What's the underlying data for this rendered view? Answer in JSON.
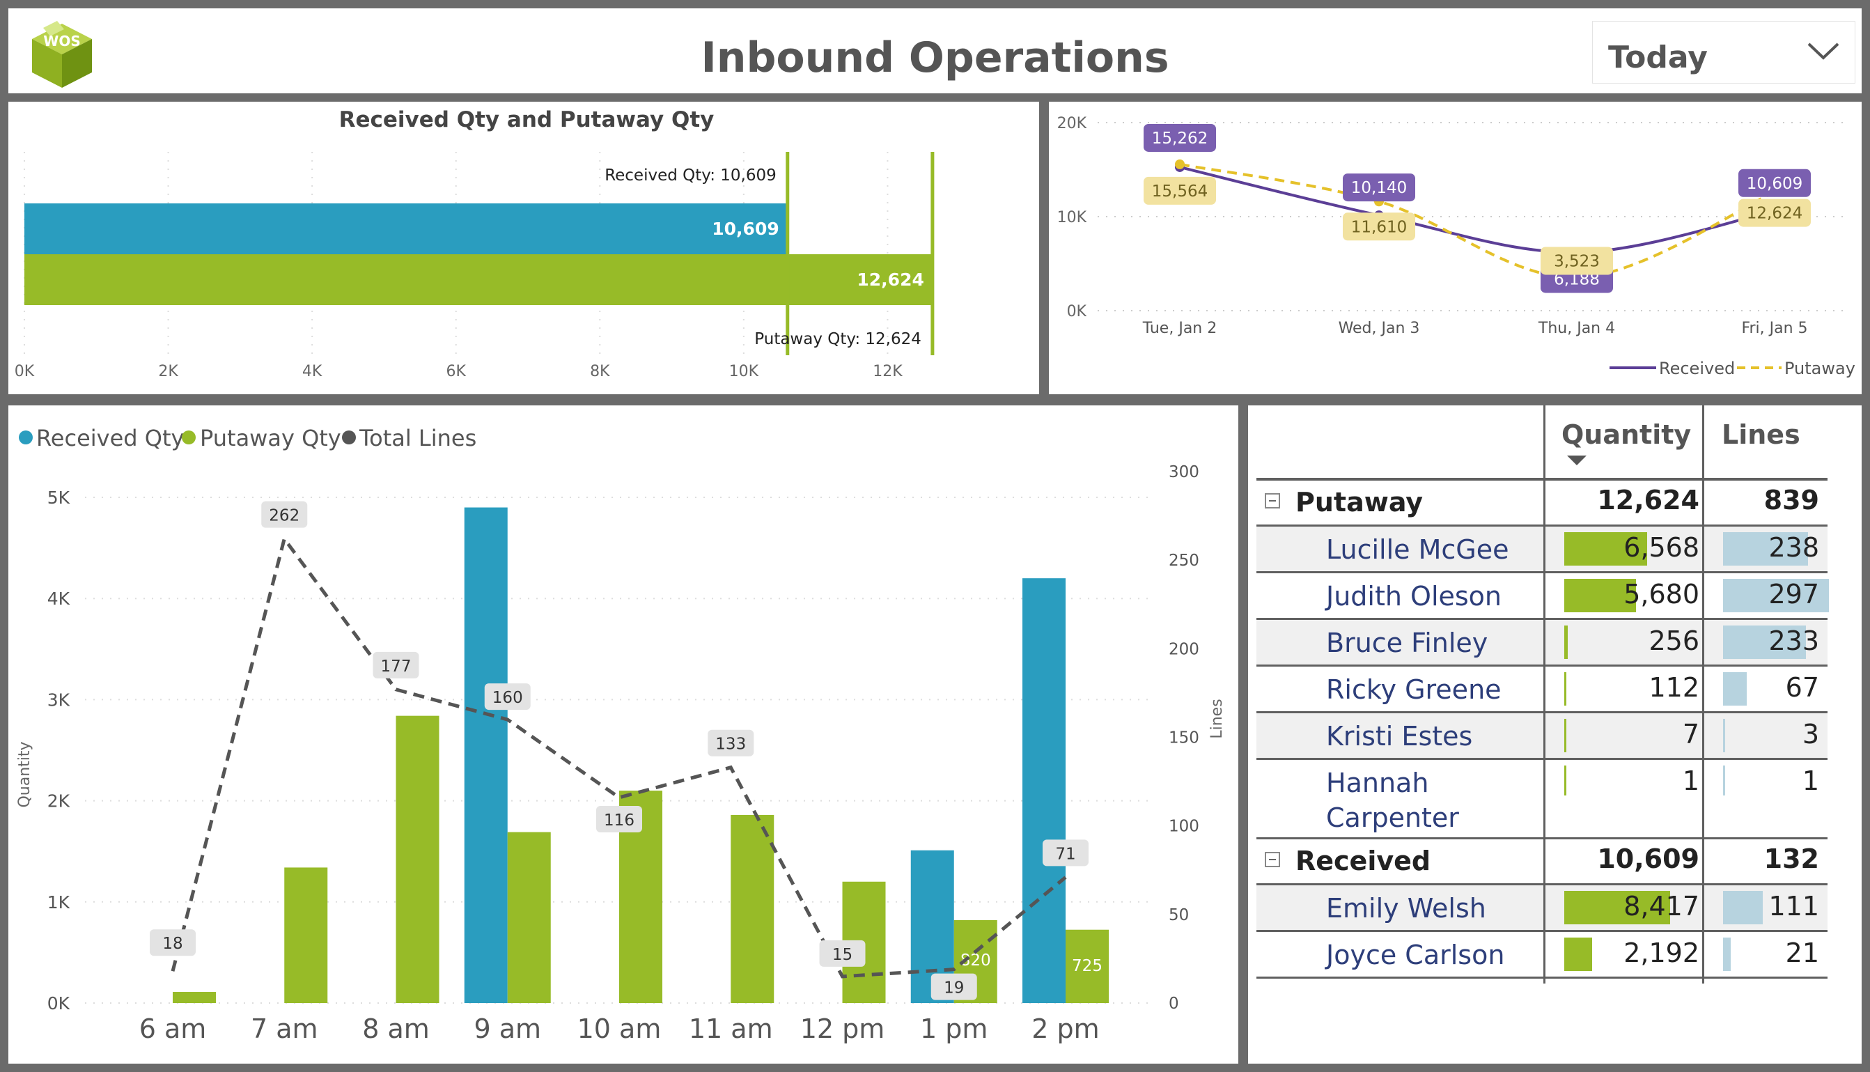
{
  "header": {
    "title": "Inbound Operations",
    "logo_text": "WOS",
    "date_filter": "Today"
  },
  "colors": {
    "received": "#2a9dbf",
    "putaway": "#97bb28",
    "total_lines": "#555555",
    "line_received": "#5b3e96",
    "line_putaway": "#e5c12a"
  },
  "bar_panel": {
    "title": "Received Qty and Putaway Qty",
    "received_ref_label": "Received Qty: 10,609",
    "putaway_ref_label": "Putaway Qty: 12,624"
  },
  "trend_legend": {
    "received": "Received",
    "putaway": "Putaway"
  },
  "hourly_legend": {
    "received": "Received Qty",
    "putaway": "Putaway Qty",
    "lines": "Total Lines"
  },
  "hourly_axes": {
    "left": "Quantity",
    "right": "Lines"
  },
  "chart_data": [
    {
      "type": "bar",
      "orientation": "horizontal",
      "title": "Received Qty and Putaway Qty",
      "categories": [
        "Received Qty",
        "Putaway Qty"
      ],
      "values": [
        10609,
        12624
      ],
      "value_labels": [
        "10,609",
        "12,624"
      ],
      "xlim": [
        0,
        14000
      ],
      "x_ticks": [
        0,
        2000,
        4000,
        6000,
        8000,
        10000,
        12000
      ],
      "x_tick_labels": [
        "0K",
        "2K",
        "4K",
        "6K",
        "8K",
        "10K",
        "12K"
      ],
      "grid": true
    },
    {
      "type": "line",
      "categories": [
        "Tue, Jan 2",
        "Wed, Jan 3",
        "Thu, Jan 4",
        "Fri, Jan 5"
      ],
      "series": [
        {
          "name": "Received",
          "values": [
            15262,
            10140,
            6188,
            10609
          ],
          "labels": [
            "15,262",
            "10,140",
            "6,188",
            "10,609"
          ]
        },
        {
          "name": "Putaway",
          "values": [
            15564,
            11610,
            3523,
            12624
          ],
          "labels": [
            "15,564",
            "11,610",
            "3,523",
            "12,624"
          ]
        }
      ],
      "ylim": [
        0,
        20000
      ],
      "y_ticks": [
        0,
        10000,
        20000
      ],
      "y_tick_labels": [
        "0K",
        "10K",
        "20K"
      ],
      "legend": "bottom-right",
      "grid": true
    },
    {
      "type": "bar",
      "categories": [
        "6 am",
        "7 am",
        "8 am",
        "9 am",
        "10 am",
        "11 am",
        "12 pm",
        "1 pm",
        "2 pm"
      ],
      "series": [
        {
          "name": "Received Qty",
          "values": [
            0,
            0,
            0,
            4900,
            0,
            0,
            0,
            1510,
            4200
          ]
        },
        {
          "name": "Putaway Qty",
          "values": [
            110,
            1340,
            2840,
            1690,
            2100,
            1860,
            1200,
            820,
            725
          ]
        },
        {
          "name": "Total Lines",
          "type": "line",
          "axis": "right",
          "values": [
            18,
            262,
            177,
            160,
            116,
            133,
            15,
            19,
            71
          ]
        }
      ],
      "bar_value_labels": {
        "1 pm": "820",
        "2 pm": "725"
      },
      "ylabel": "Quantity",
      "y2label": "Lines",
      "ylim": [
        0,
        5000
      ],
      "y_ticks": [
        0,
        1000,
        2000,
        3000,
        4000,
        5000
      ],
      "y_tick_labels": [
        "0K",
        "1K",
        "2K",
        "3K",
        "4K",
        "5K"
      ],
      "y2lim": [
        0,
        300
      ],
      "y2_ticks": [
        0,
        50,
        100,
        150,
        200,
        250,
        300
      ],
      "legend": "top-left",
      "grid": true
    }
  ],
  "matrix": {
    "columns": {
      "quantity": "Quantity",
      "lines": "Lines"
    },
    "max_quantity": 8417,
    "max_lines": 297,
    "groups": [
      {
        "name": "Putaway",
        "quantity": "12,624",
        "lines": "839",
        "rows": [
          {
            "name": "Lucille McGee",
            "quantity": "6,568",
            "lines": "238",
            "q": 6568,
            "l": 238
          },
          {
            "name": "Judith Oleson",
            "quantity": "5,680",
            "lines": "297",
            "q": 5680,
            "l": 297
          },
          {
            "name": "Bruce Finley",
            "quantity": "256",
            "lines": "233",
            "q": 256,
            "l": 233
          },
          {
            "name": "Ricky Greene",
            "quantity": "112",
            "lines": "67",
            "q": 112,
            "l": 67
          },
          {
            "name": "Kristi Estes",
            "quantity": "7",
            "lines": "3",
            "q": 7,
            "l": 3
          },
          {
            "name": "Hannah Carpenter",
            "name_line1": "Hannah",
            "name_line2": "Carpenter",
            "quantity": "1",
            "lines": "1",
            "q": 1,
            "l": 1
          }
        ]
      },
      {
        "name": "Received",
        "quantity": "10,609",
        "lines": "132",
        "rows": [
          {
            "name": "Emily Welsh",
            "quantity": "8,417",
            "lines": "111",
            "q": 8417,
            "l": 111
          },
          {
            "name": "Joyce Carlson",
            "quantity": "2,192",
            "lines": "21",
            "q": 2192,
            "l": 21
          }
        ]
      }
    ]
  }
}
